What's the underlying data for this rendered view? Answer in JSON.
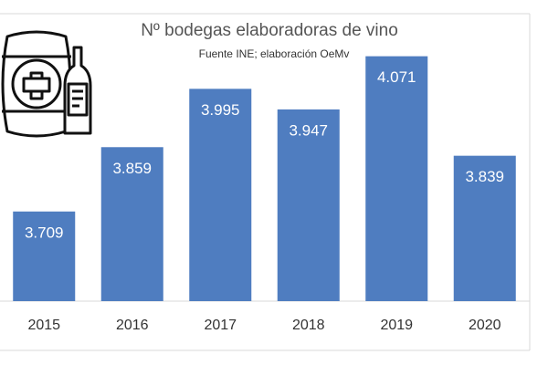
{
  "chart_data": {
    "type": "bar",
    "title": "Nº bodegas elaboradoras de vino",
    "subtitle": "Fuente INE; elaboración OeMv",
    "categories": [
      "2015",
      "2016",
      "2017",
      "2018",
      "2019",
      "2020"
    ],
    "values": [
      3709,
      3859,
      3995,
      3947,
      4071,
      3839
    ],
    "value_labels": [
      "3.709",
      "3.859",
      "3.995",
      "3.947",
      "4.071",
      "3.839"
    ],
    "color": "#4f7dc0",
    "ylim": [
      3500,
      4100
    ]
  }
}
